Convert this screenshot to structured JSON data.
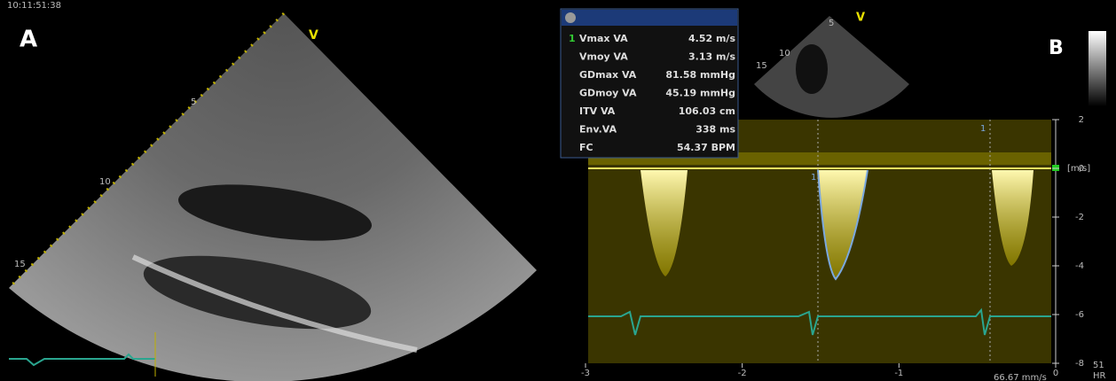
{
  "panel_a": {
    "timestamp": "10:11:51:38",
    "label": "A",
    "marker": "V",
    "depth_marks": [
      "5",
      "10",
      "15"
    ]
  },
  "panel_b": {
    "label": "B",
    "marker": "V",
    "depth_marks": [
      "5",
      "10",
      "15"
    ],
    "cycle_markers": [
      "1",
      "1"
    ]
  },
  "measurements": {
    "index": "1",
    "rows": [
      [
        "Vmax VA",
        "4.52 m/s"
      ],
      [
        "Vmoy VA",
        "3.13 m/s"
      ],
      [
        "GDmax VA",
        "81.58 mmHg"
      ],
      [
        "GDmoy VA",
        "45.19 mmHg"
      ],
      [
        "ITV VA",
        "106.03 cm"
      ],
      [
        "Env.VA",
        "338 ms"
      ],
      [
        "FC",
        "54.37 BPM"
      ]
    ]
  },
  "doppler": {
    "unit": "[m/s]",
    "y_ticks": [
      "2",
      "0",
      "-2",
      "-4",
      "-6",
      "-8"
    ],
    "x_ticks": [
      "-3",
      "-2",
      "-1",
      "0"
    ],
    "hr_value": "51",
    "hr_label": "HR",
    "sweep": "66.67 mm/s"
  }
}
